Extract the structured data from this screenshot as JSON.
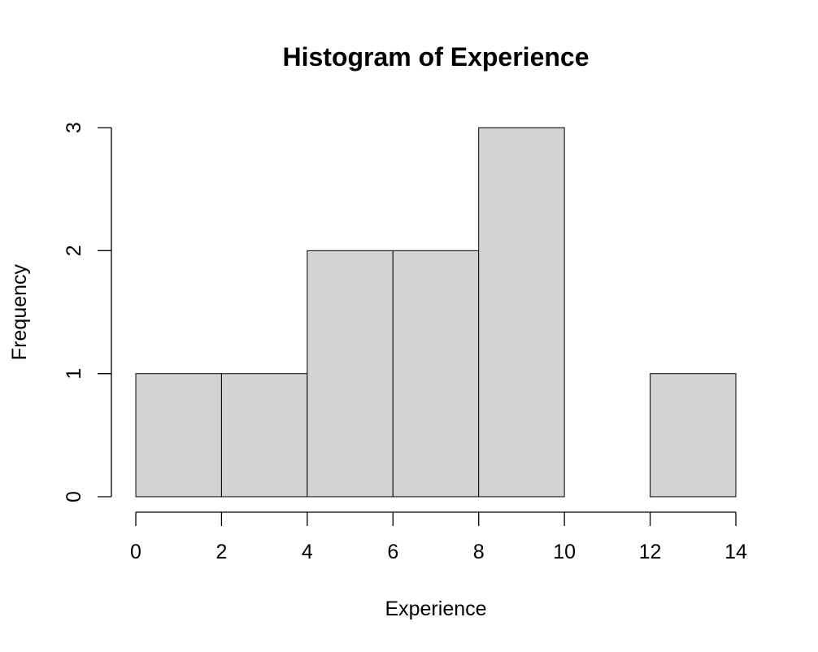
{
  "chart_data": {
    "type": "bar",
    "title": "Histogram of Experience",
    "xlabel": "Experience",
    "ylabel": "Frequency",
    "bins": [
      {
        "from": 0,
        "to": 2,
        "count": 1
      },
      {
        "from": 2,
        "to": 4,
        "count": 1
      },
      {
        "from": 4,
        "to": 6,
        "count": 2
      },
      {
        "from": 6,
        "to": 8,
        "count": 2
      },
      {
        "from": 8,
        "to": 10,
        "count": 3
      },
      {
        "from": 10,
        "to": 12,
        "count": 0
      },
      {
        "from": 12,
        "to": 14,
        "count": 1
      }
    ],
    "xlim": [
      0,
      14
    ],
    "ylim": [
      0,
      3
    ],
    "x_ticks": [
      "0",
      "2",
      "4",
      "6",
      "8",
      "10",
      "12",
      "14"
    ],
    "y_ticks": [
      "0",
      "1",
      "2",
      "3"
    ],
    "bar_color": "#d3d3d3",
    "grid": false
  }
}
